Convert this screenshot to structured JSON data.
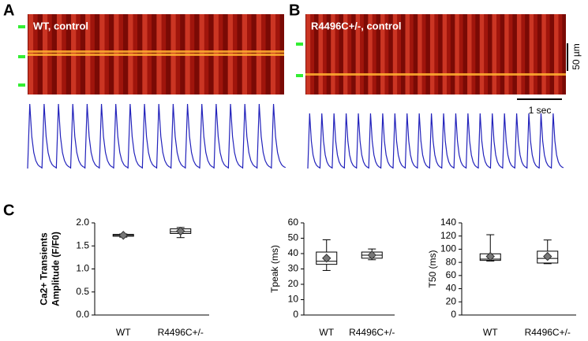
{
  "panel_labels": [
    "A",
    "B",
    "C"
  ],
  "images": [
    {
      "label": "WT, control"
    },
    {
      "label": "R4496C+/-, control"
    }
  ],
  "scale_bars": {
    "space": "50 µm",
    "time": "1 sec"
  },
  "chart_data": [
    {
      "type": "box",
      "ylabel": [
        "Ca2+ Transients",
        "Amplitude (F/F0)"
      ],
      "categories": [
        "WT",
        "R4496C+/-"
      ],
      "boxes": [
        {
          "min": 1.69,
          "q1": 1.71,
          "median": 1.73,
          "q3": 1.75,
          "max": 1.76,
          "mean": 1.73
        },
        {
          "min": 1.68,
          "q1": 1.77,
          "median": 1.81,
          "q3": 1.87,
          "max": 1.9,
          "mean": 1.82
        }
      ],
      "ylim": [
        0,
        2
      ],
      "yticks": [
        {
          "value": 0,
          "label": "0.0"
        },
        {
          "value": 0.5,
          "label": "0.5"
        },
        {
          "value": 1,
          "label": "1.0"
        },
        {
          "value": 1.5,
          "label": "1.5"
        },
        {
          "value": 2,
          "label": "2.0"
        }
      ]
    },
    {
      "type": "box",
      "ylabel": [
        "Tpeak (ms)"
      ],
      "categories": [
        "WT",
        "R4496C+/-"
      ],
      "boxes": [
        {
          "min": 29,
          "q1": 33,
          "median": 35,
          "q3": 41,
          "max": 49,
          "mean": 37
        },
        {
          "min": 36,
          "q1": 37,
          "median": 39,
          "q3": 41,
          "max": 43,
          "mean": 39
        }
      ],
      "ylim": [
        0,
        60
      ],
      "yticks": [
        0,
        10,
        20,
        30,
        40,
        50,
        60
      ]
    },
    {
      "type": "box",
      "ylabel": [
        "T50 (ms)"
      ],
      "categories": [
        "WT",
        "R4496C+/-"
      ],
      "boxes": [
        {
          "min": 82,
          "q1": 83,
          "median": 85,
          "q3": 93,
          "max": 122,
          "mean": 89
        },
        {
          "min": 78,
          "q1": 79,
          "median": 86,
          "q3": 97,
          "max": 114,
          "mean": 89
        }
      ],
      "ylim": [
        0,
        140
      ],
      "yticks": [
        0,
        20,
        40,
        60,
        80,
        100,
        120,
        140
      ]
    }
  ]
}
